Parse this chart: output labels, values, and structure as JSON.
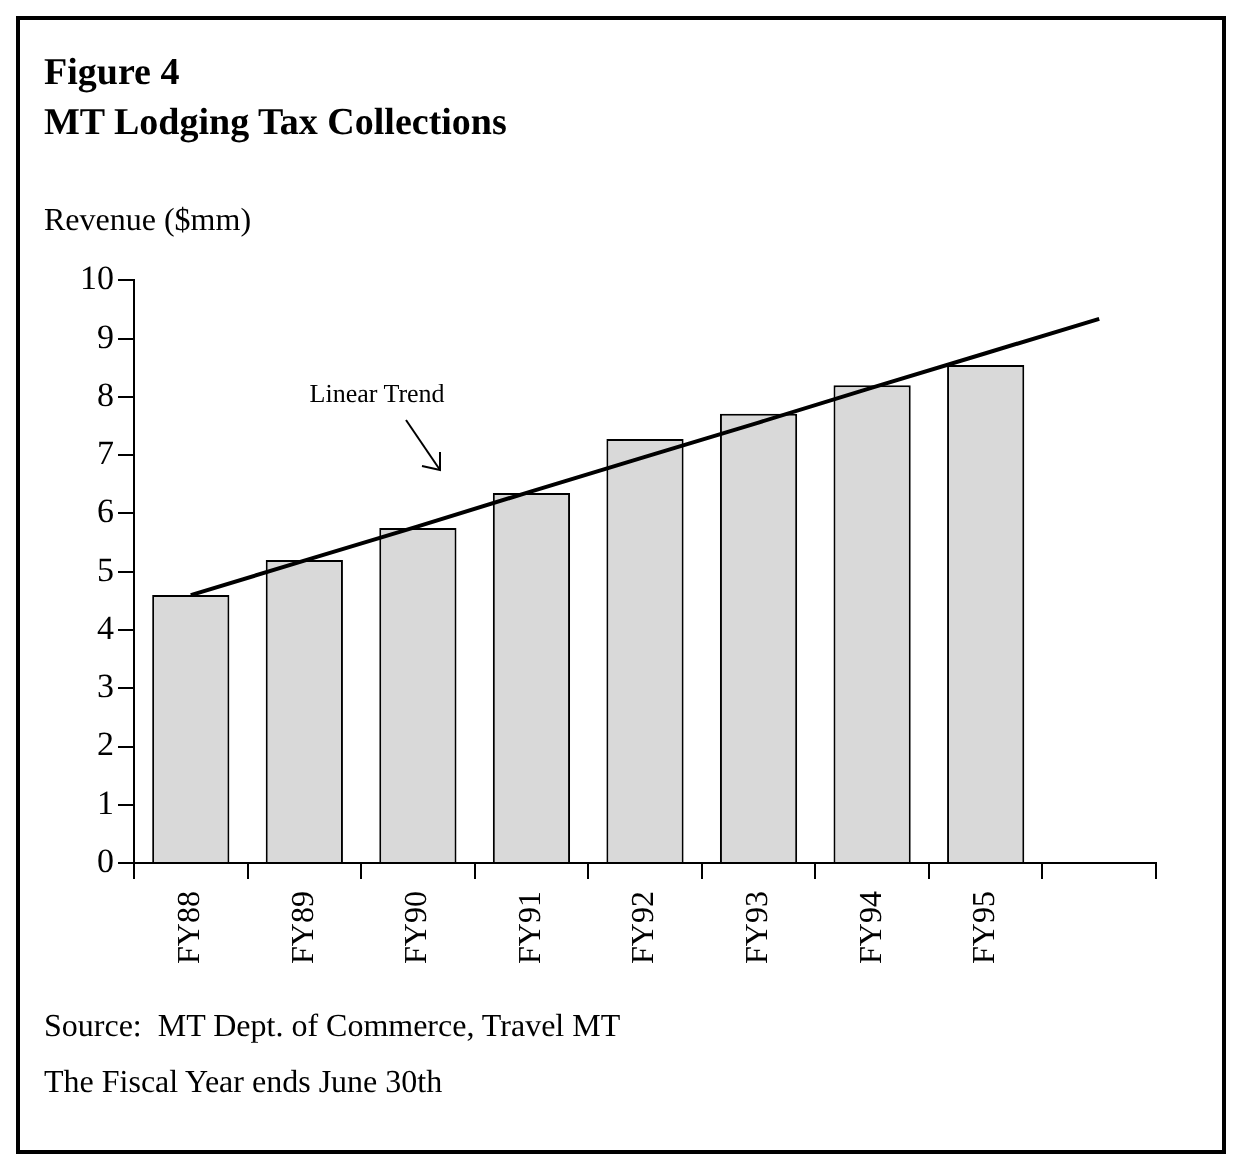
{
  "chart_data": {
    "type": "bar",
    "title": "Figure 4",
    "subtitle": "MT Lodging Tax Collections",
    "ylabel": "Revenue ($mm)",
    "categories": [
      "FY88",
      "FY89",
      "FY90",
      "FY91",
      "FY92",
      "FY93",
      "FY94",
      "FY95",
      null
    ],
    "series": [
      {
        "color": "#d9d9d9",
        "values": [
          4.6,
          5.2,
          5.75,
          6.35,
          7.28,
          7.71,
          8.2,
          8.55,
          null
        ]
      },
      {
        "type": "line",
        "name": "Linear Trend",
        "color": "#000000",
        "values": [
          4.6,
          5.19,
          5.78,
          6.38,
          6.97,
          7.56,
          8.16,
          8.75,
          9.34
        ]
      }
    ],
    "ylim": [
      0,
      10
    ],
    "yticks": [
      0,
      1,
      2,
      3,
      4,
      5,
      6,
      7,
      8,
      9,
      10
    ],
    "grid": false,
    "legend": false,
    "marker": "none",
    "line_style": "solid",
    "annotations": [
      "Source:  MT Dept. of Commerce, Travel MT",
      "The Fiscal Year ends June 30th"
    ]
  }
}
